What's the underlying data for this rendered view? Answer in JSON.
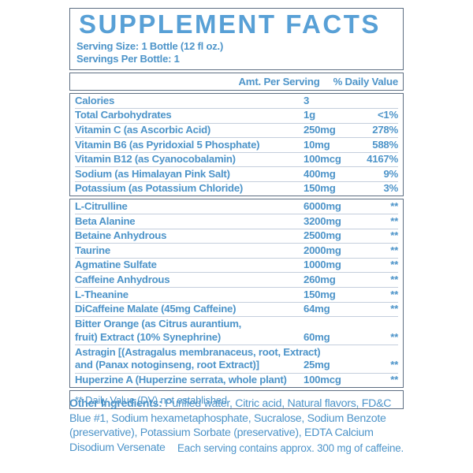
{
  "label": {
    "title": "SUPPLEMENT FACTS",
    "serving_size": "Serving Size: 1 Bottle  (12 fl oz.)",
    "servings_per_bottle": "Servings Per Bottle: 1",
    "columns": {
      "amount": "Amt. Per Serving",
      "daily_value": "% Daily Value"
    },
    "sections": [
      {
        "rows": [
          {
            "name": "Calories",
            "amount": "3",
            "dv": ""
          },
          {
            "name": "Total Carbohydrates",
            "amount": "1g",
            "dv": "<1%"
          },
          {
            "name": "Vitamin C (as Ascorbic Acid)",
            "amount": "250mg",
            "dv": "278%"
          },
          {
            "name": "Vitamin B6 (as Pyridoxial 5 Phosphate)",
            "amount": "10mg",
            "dv": "588%"
          },
          {
            "name": "Vitamin B12 (as Cyanocobalamin)",
            "amount": "100mcg",
            "dv": "4167%"
          },
          {
            "name": "Sodium (as Himalayan Pink Salt)",
            "amount": "400mg",
            "dv": "9%"
          },
          {
            "name": "Potassium (as Potassium Chloride)",
            "amount": "150mg",
            "dv": "3%"
          }
        ]
      },
      {
        "rows": [
          {
            "name": "L-Citrulline",
            "amount": "6000mg",
            "dv": "**"
          },
          {
            "name": "Beta Alanine",
            "amount": "3200mg",
            "dv": "**"
          },
          {
            "name": "Betaine Anhydrous",
            "amount": "2500mg",
            "dv": "**"
          },
          {
            "name": "Taurine",
            "amount": "2000mg",
            "dv": "**"
          },
          {
            "name": "Agmatine Sulfate",
            "amount": "1000mg",
            "dv": "**"
          },
          {
            "name": "Caffeine Anhydrous",
            "amount": "260mg",
            "dv": "**"
          },
          {
            "name": "L-Theanine",
            "amount": "150mg",
            "dv": "**"
          },
          {
            "name": "DiCaffeine Malate (45mg Caffeine)",
            "amount": "64mg",
            "dv": "**"
          },
          {
            "lines": [
              "Bitter Orange (as Citrus aurantium,",
              "fruit) Extract (10% Synephrine)"
            ],
            "amount": "60mg",
            "dv": "**"
          },
          {
            "lines": [
              "Astragin [(Astragalus membranaceus, root, Extract)",
              "and (Panax notoginseng, root Extract)]"
            ],
            "amount": "25mg",
            "dv": "**"
          },
          {
            "name": "Huperzine A (Huperzine serrata, whole plant)",
            "amount": "100mcg",
            "dv": "**"
          }
        ]
      }
    ],
    "footnote": "** Daily Value (DV) not established",
    "other_ingredients_label": "Other Ingredients:",
    "other_ingredients_text": " Purified water, Citric acid, Natural flavors, FD&C Blue #1, Sodium hexametaphosphate, Sucralose, Sodium Benzote (preservative), Potassium Sorbate (preservative), EDTA Calcium Disodium Versenate",
    "caffeine_note": "Each serving contains approx. 300 mg of caffeine."
  },
  "colors": {
    "title_blue": "#58A0D6",
    "text_blue": "#4D94C9",
    "section_border": "#5D6E82",
    "row_hairline": "#C4CEDC",
    "background": "#FFFFFF"
  }
}
